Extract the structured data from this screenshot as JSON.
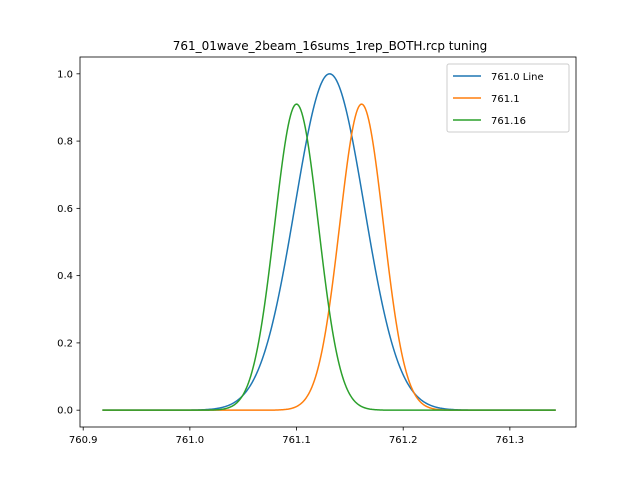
{
  "chart_data": {
    "type": "line",
    "title": "761_01wave_2beam_16sums_1rep_BOTH.rcp tuning",
    "xlabel": "",
    "ylabel": "",
    "xlim": [
      760.897,
      761.362
    ],
    "ylim": [
      -0.05,
      1.05
    ],
    "xticks": [
      760.9,
      761.0,
      761.1,
      761.2,
      761.3
    ],
    "xtick_labels": [
      "760.9",
      "761.0",
      "761.1",
      "761.2",
      "761.3"
    ],
    "yticks": [
      0.0,
      0.2,
      0.4,
      0.6,
      0.8,
      1.0
    ],
    "ytick_labels": [
      "0.0",
      "0.2",
      "0.4",
      "0.6",
      "0.8",
      "1.0"
    ],
    "grid": false,
    "legend_position": "top-right",
    "x_range": [
      760.918,
      761.343
    ],
    "series": [
      {
        "name": "761.0 Line",
        "color": "#1f77b4",
        "peak_x": 761.131,
        "peak_y": 1.0,
        "sigma": 0.0325
      },
      {
        "name": "761.1",
        "color": "#ff7f0e",
        "peak_x": 761.161,
        "peak_y": 0.91,
        "sigma": 0.0205
      },
      {
        "name": "761.16",
        "color": "#2ca02c",
        "peak_x": 761.1,
        "peak_y": 0.91,
        "sigma": 0.0205
      }
    ]
  }
}
